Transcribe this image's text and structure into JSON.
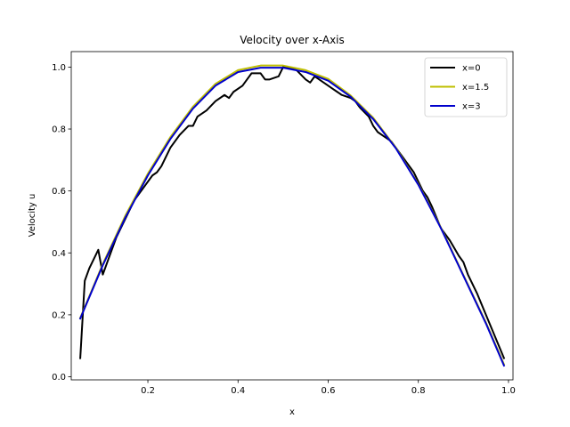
{
  "chart_data": {
    "type": "line",
    "title": "Velocity over x-Axis",
    "xlabel": "x",
    "ylabel": "Velocity u",
    "xlim": [
      0.03,
      1.01
    ],
    "ylim": [
      -0.01,
      1.05
    ],
    "xticks": [
      0.2,
      0.4,
      0.6,
      0.8,
      1.0
    ],
    "yticks": [
      0.0,
      0.2,
      0.4,
      0.6,
      0.8,
      1.0
    ],
    "grid": false,
    "legend_position": "top-right",
    "series": [
      {
        "name": "x=0",
        "color": "#000000",
        "x": [
          0.05,
          0.06,
          0.07,
          0.09,
          0.1,
          0.11,
          0.13,
          0.15,
          0.17,
          0.19,
          0.21,
          0.22,
          0.23,
          0.25,
          0.27,
          0.29,
          0.3,
          0.31,
          0.33,
          0.35,
          0.37,
          0.38,
          0.39,
          0.41,
          0.42,
          0.43,
          0.45,
          0.46,
          0.47,
          0.49,
          0.5,
          0.51,
          0.53,
          0.55,
          0.56,
          0.57,
          0.59,
          0.61,
          0.62,
          0.63,
          0.65,
          0.66,
          0.67,
          0.69,
          0.7,
          0.71,
          0.73,
          0.74,
          0.75,
          0.77,
          0.79,
          0.81,
          0.82,
          0.83,
          0.85,
          0.87,
          0.89,
          0.9,
          0.91,
          0.93,
          0.95,
          0.97,
          0.99
        ],
        "values": [
          0.06,
          0.31,
          0.35,
          0.41,
          0.33,
          0.37,
          0.45,
          0.51,
          0.57,
          0.61,
          0.65,
          0.66,
          0.68,
          0.74,
          0.78,
          0.81,
          0.81,
          0.84,
          0.86,
          0.89,
          0.91,
          0.9,
          0.92,
          0.94,
          0.96,
          0.98,
          0.98,
          0.96,
          0.96,
          0.97,
          1.0,
          1.0,
          0.99,
          0.96,
          0.95,
          0.97,
          0.95,
          0.93,
          0.92,
          0.91,
          0.9,
          0.89,
          0.87,
          0.84,
          0.81,
          0.79,
          0.77,
          0.76,
          0.74,
          0.7,
          0.66,
          0.6,
          0.58,
          0.55,
          0.48,
          0.44,
          0.39,
          0.37,
          0.33,
          0.27,
          0.2,
          0.13,
          0.06
        ]
      },
      {
        "name": "x=1.5",
        "color": "#bfbf00",
        "x": [
          0.05,
          0.1,
          0.15,
          0.2,
          0.25,
          0.3,
          0.35,
          0.4,
          0.45,
          0.5,
          0.55,
          0.6,
          0.65,
          0.7,
          0.75,
          0.8,
          0.85,
          0.9,
          0.95,
          0.99
        ],
        "values": [
          0.19,
          0.364,
          0.52,
          0.656,
          0.774,
          0.872,
          0.946,
          0.99,
          1.005,
          1.005,
          0.99,
          0.962,
          0.908,
          0.836,
          0.74,
          0.622,
          0.482,
          0.328,
          0.175,
          0.04
        ]
      },
      {
        "name": "x=3",
        "color": "#0000cc",
        "x": [
          0.05,
          0.1,
          0.15,
          0.2,
          0.25,
          0.3,
          0.35,
          0.4,
          0.45,
          0.5,
          0.55,
          0.6,
          0.65,
          0.7,
          0.75,
          0.8,
          0.85,
          0.9,
          0.95,
          0.99
        ],
        "values": [
          0.188,
          0.36,
          0.514,
          0.65,
          0.768,
          0.866,
          0.94,
          0.984,
          0.998,
          0.998,
          0.984,
          0.956,
          0.904,
          0.832,
          0.738,
          0.62,
          0.48,
          0.326,
          0.172,
          0.036
        ]
      }
    ]
  }
}
